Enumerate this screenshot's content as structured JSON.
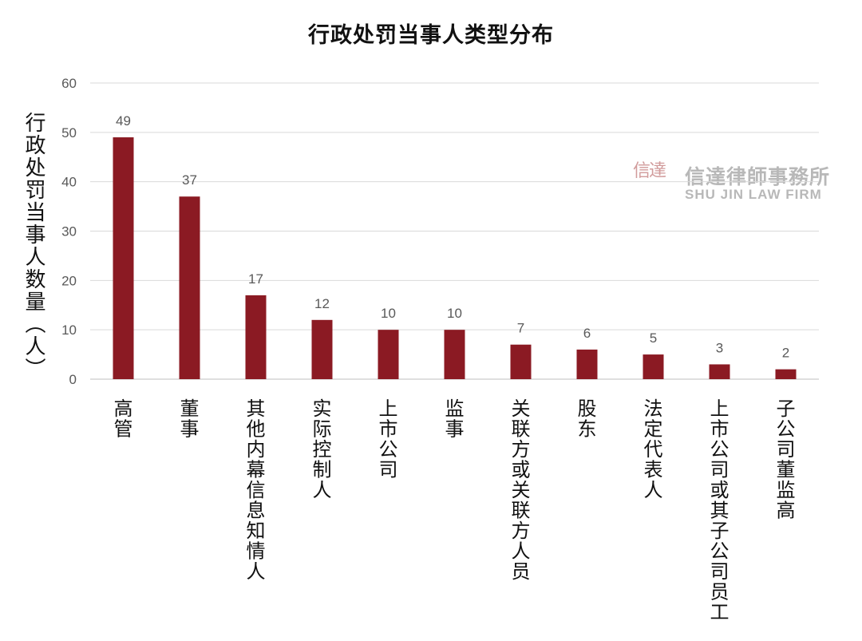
{
  "chart_data": {
    "type": "bar",
    "title": "行政处罚当事人类型分布",
    "ylabel": "行政处罚当事人数量（人）",
    "xlabel": "",
    "ylim": [
      0,
      60
    ],
    "yticks": [
      0,
      10,
      20,
      30,
      40,
      50,
      60
    ],
    "grid": true,
    "categories": [
      "高管",
      "董事",
      "其他内幕信息知情人",
      "实际控制人",
      "上市公司",
      "监事",
      "关联方或关联方人员",
      "股东",
      "法定代表人",
      "上市公司或其子公司员工",
      "子公司董监高"
    ],
    "values": [
      49,
      37,
      17,
      12,
      10,
      10,
      7,
      6,
      5,
      3,
      2
    ],
    "bar_color": "#8b1a23"
  },
  "watermark": {
    "seal": "信達",
    "name": "信達律師事務所",
    "name_en": "SHU JIN LAW FIRM"
  },
  "colors": {
    "bar": "#8b1a23",
    "grid": "#d9d9d9",
    "tick_text": "#595959",
    "label_text": "#111111"
  }
}
